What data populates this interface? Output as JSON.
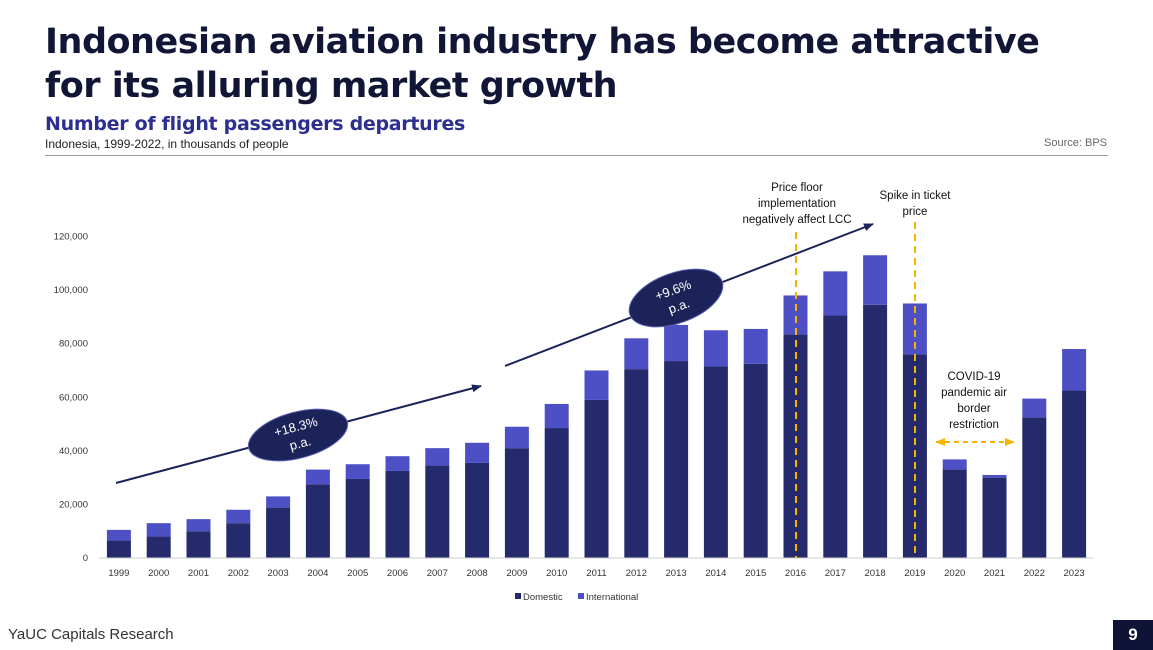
{
  "page": {
    "title": "Indonesian aviation industry has become attractive for its alluring market growth",
    "subtitle": "Number of flight passengers departures",
    "description": "Indonesia, 1999-2022, in thousands of people",
    "source": "Source: BPS",
    "footer_brand": "YaUC Capitals Research",
    "page_number": "9"
  },
  "colors": {
    "domestic": "#242a6b",
    "international": "#4c50c4",
    "annotation_line": "#f5b400",
    "trend_arrow": "#1c2358",
    "ellipse_fill": "#1c2358"
  },
  "chart_data": {
    "type": "bar",
    "stacked": true,
    "title": "Number of flight passengers departures",
    "xlabel": "",
    "ylabel": "",
    "ylim": [
      0,
      120000
    ],
    "yticks": [
      0,
      20000,
      40000,
      60000,
      80000,
      100000,
      120000
    ],
    "ytick_labels": [
      "0",
      "20,000",
      "40,000",
      "60,000",
      "80,000",
      "100,000",
      "120,000"
    ],
    "legend_position": "bottom",
    "categories": [
      "1999",
      "2000",
      "2001",
      "2002",
      "2003",
      "2004",
      "2005",
      "2006",
      "2007",
      "2008",
      "2009",
      "2010",
      "2011",
      "2012",
      "2013",
      "2014",
      "2015",
      "2016",
      "2017",
      "2018",
      "2019",
      "2020",
      "2021",
      "2022",
      "2023"
    ],
    "series": [
      {
        "name": "Domestic",
        "values": [
          6500,
          8000,
          10000,
          13000,
          18800,
          27500,
          29500,
          32500,
          34500,
          35500,
          41000,
          48500,
          59000,
          70500,
          73500,
          71500,
          72500,
          83500,
          90500,
          94500,
          76000,
          33000,
          30000,
          52500,
          62500
        ]
      },
      {
        "name": "International",
        "values": [
          4000,
          5000,
          4500,
          5000,
          4200,
          5500,
          5500,
          5500,
          6500,
          7500,
          8000,
          9000,
          11000,
          11500,
          13500,
          13500,
          13000,
          14500,
          16500,
          18500,
          19000,
          3800,
          1000,
          7000,
          15500
        ]
      }
    ],
    "annotations": {
      "cagr1": "+18.3% p.a.",
      "cagr2": "+9.6% p.a.",
      "event_2016": "Price floor implementation negatively affect LCC",
      "event_2019": "Spike in ticket price",
      "event_covid": "COVID-19 pandemic air border restriction"
    }
  }
}
